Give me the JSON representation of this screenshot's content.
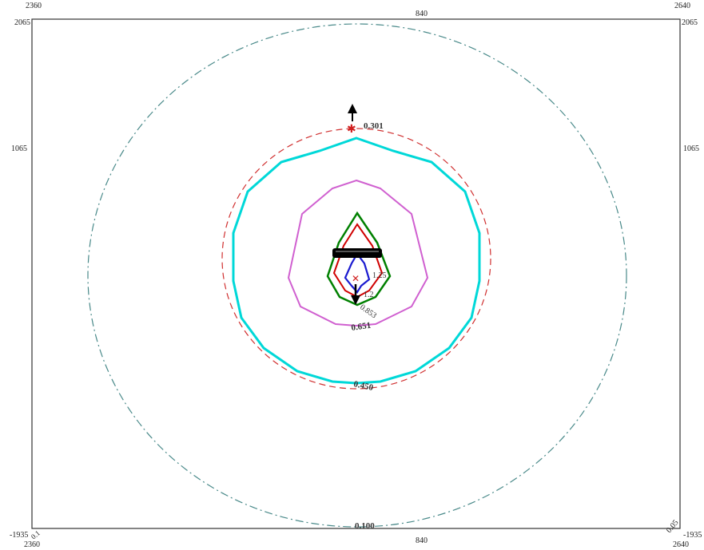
{
  "axis_ticks": {
    "top_left": "2360",
    "top_center": "840",
    "top_right": "2640",
    "left_corner": "2065",
    "right_corner": "2065",
    "left_mid": "1065",
    "right_mid": "1065",
    "bottom_left": "2360",
    "bottom_left_side": "-1935",
    "bottom_center": "840",
    "bottom_right": "2640",
    "bottom_right_side": "-1935"
  },
  "contours": [
    {
      "label": "0.100",
      "color": "#4a8a8a"
    },
    {
      "label": "0.301",
      "color": "#d03030"
    },
    {
      "label": "0.450",
      "color": "#00d8d8"
    },
    {
      "label": "0.651",
      "color": "#d060d0"
    },
    {
      "label": "0.853",
      "color": "#008000"
    },
    {
      "label": "1.2",
      "color": "#d00000"
    },
    {
      "label": "1.25",
      "color": "#1a1ad0"
    }
  ],
  "corner_marks": {
    "bottom_left_value": "0.1",
    "bottom_right_value": "0.05"
  },
  "colors": {
    "border": "#333333",
    "arrow": "#000000",
    "star": "#d02020"
  }
}
